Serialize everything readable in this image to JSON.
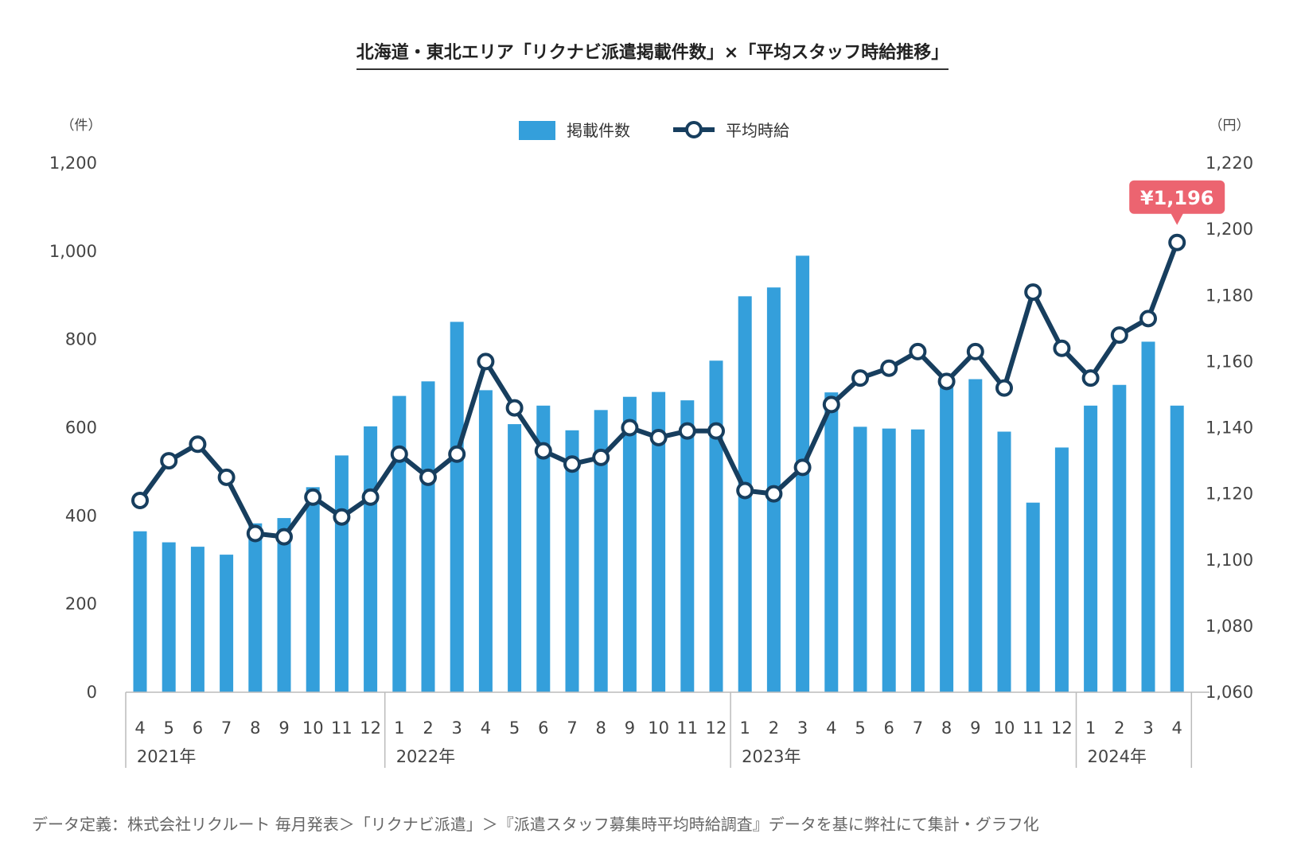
{
  "colors": {
    "bar": "#349fdb",
    "line": "#173e5e",
    "callout": "#ec6470",
    "axis": "#bbbbbb"
  },
  "chart_data": {
    "type": "bar",
    "title": "北海道・東北エリア「リクナビ派遣掲載件数」×「平均スタッフ時給推移」",
    "categories": [
      "4",
      "5",
      "6",
      "7",
      "8",
      "9",
      "10",
      "11",
      "12",
      "1",
      "2",
      "3",
      "4",
      "5",
      "6",
      "7",
      "8",
      "9",
      "10",
      "11",
      "12",
      "1",
      "2",
      "3",
      "4",
      "5",
      "6",
      "7",
      "8",
      "9",
      "10",
      "11",
      "12",
      "1",
      "2",
      "3",
      "4"
    ],
    "years": [
      {
        "label": "2021年",
        "start": 0,
        "end": 8
      },
      {
        "label": "2022年",
        "start": 9,
        "end": 20
      },
      {
        "label": "2023年",
        "start": 21,
        "end": 32
      },
      {
        "label": "2024年",
        "start": 33,
        "end": 36
      }
    ],
    "series": [
      {
        "name": "掲載件数",
        "type": "bar",
        "axis": "left",
        "values": [
          365,
          340,
          330,
          312,
          383,
          395,
          465,
          537,
          603,
          672,
          705,
          840,
          685,
          608,
          650,
          594,
          640,
          670,
          681,
          662,
          752,
          898,
          918,
          990,
          680,
          602,
          598,
          596,
          704,
          710,
          591,
          430,
          555,
          650,
          697,
          795,
          650
        ]
      },
      {
        "name": "平均時給",
        "type": "line",
        "axis": "right",
        "values": [
          1118,
          1130,
          1135,
          1125,
          1108,
          1107,
          1119,
          1113,
          1119,
          1132,
          1125,
          1132,
          1160,
          1146,
          1133,
          1129,
          1131,
          1140,
          1137,
          1139,
          1139,
          1121,
          1120,
          1128,
          1147,
          1155,
          1158,
          1163,
          1154,
          1163,
          1152,
          1181,
          1164,
          1155,
          1168,
          1173,
          1196
        ]
      }
    ],
    "y_left": {
      "unit": "（件）",
      "ylim": [
        0,
        1200
      ],
      "ticks": [
        "0",
        "200",
        "400",
        "600",
        "800",
        "1,000",
        "1,200"
      ]
    },
    "y_right": {
      "unit": "（円）",
      "ylim": [
        1060,
        1220
      ],
      "ticks": [
        "1,060",
        "1,080",
        "1,100",
        "1,120",
        "1,140",
        "1,160",
        "1,180",
        "1,200",
        "1,220"
      ]
    },
    "legend": {
      "bar_label": "掲載件数",
      "line_label": "平均時給",
      "placement": "top-center"
    },
    "annotation": {
      "text": "¥1,196",
      "index": 36
    }
  },
  "footnote": "データ定義：株式会社リクルート 毎月発表＞「リクナビ派遣」＞『派遣スタッフ募集時平均時給調査』データを基に弊社にて集計・グラフ化"
}
